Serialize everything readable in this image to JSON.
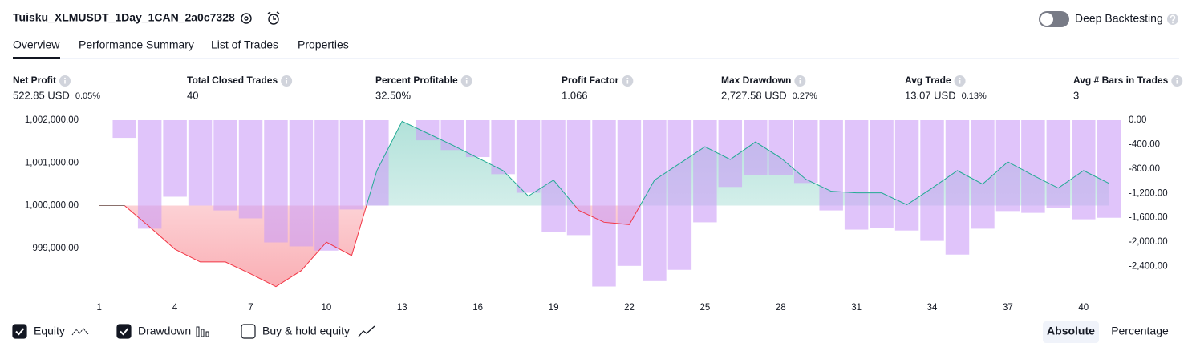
{
  "header": {
    "title": "Tuisku_XLMUSDT_1Day_1CAN_2a0c7328",
    "toggle_label": "Deep Backtesting"
  },
  "tabs": [
    "Overview",
    "Performance Summary",
    "List of Trades",
    "Properties"
  ],
  "stats": [
    {
      "label": "Net Profit",
      "value": "522.85 USD",
      "pct": "0.05%",
      "color": "#089981"
    },
    {
      "label": "Total Closed Trades",
      "value": "40",
      "color": "#131722"
    },
    {
      "label": "Percent Profitable",
      "value": "32.50%",
      "color": "#089981"
    },
    {
      "label": "Profit Factor",
      "value": "1.066",
      "color": "#089981"
    },
    {
      "label": "Max Drawdown",
      "value": "2,727.58 USD",
      "pct": "0.27%",
      "color": "#f23645"
    },
    {
      "label": "Avg Trade",
      "value": "13.07 USD",
      "pct": "0.13%",
      "color": "#089981"
    },
    {
      "label": "Avg # Bars in Trades",
      "value": "3",
      "color": "#131722"
    }
  ],
  "chart_data": {
    "type": "combo",
    "x": [
      1,
      2,
      3,
      4,
      5,
      6,
      7,
      8,
      9,
      10,
      11,
      12,
      13,
      14,
      15,
      16,
      17,
      18,
      19,
      20,
      21,
      22,
      23,
      24,
      25,
      26,
      27,
      28,
      29,
      30,
      31,
      32,
      33,
      34,
      35,
      36,
      37,
      38,
      39,
      40,
      41
    ],
    "xlim": [
      0.5,
      41.5
    ],
    "xticks": [
      1,
      4,
      7,
      10,
      13,
      16,
      19,
      22,
      25,
      28,
      31,
      34,
      37,
      40
    ],
    "ylim": [
      998000,
      1002000
    ],
    "yticks": [
      {
        "value": 1002000,
        "label": "1,002,000.00"
      },
      {
        "value": 1001000,
        "label": "1,001,000.00"
      },
      {
        "value": 1000000,
        "label": "1,000,000.00"
      },
      {
        "value": 999000,
        "label": "999,000.00"
      }
    ],
    "y2lim": [
      -2800,
      0
    ],
    "y2ticks": [
      {
        "value": 0,
        "label": "0.00"
      },
      {
        "value": -400,
        "label": "-400.00"
      },
      {
        "value": -800,
        "label": "-800.00"
      },
      {
        "value": -1200,
        "label": "-1,200.00"
      },
      {
        "value": -1600,
        "label": "-1,600.00"
      },
      {
        "value": -2000,
        "label": "-2,000.00"
      },
      {
        "value": -2400,
        "label": "-2,400.00"
      }
    ],
    "grid": false,
    "series": [
      {
        "name": "Equity",
        "type": "area",
        "color": "#22ab94",
        "negative_color": "#f23645",
        "values": [
          1000000,
          1000000,
          999497,
          998976,
          998678,
          998678,
          998398,
          998100,
          998473,
          999143,
          998827,
          1000819,
          1001974,
          1001695,
          1001415,
          1001117,
          1000819,
          1000223,
          1000596,
          999888,
          999609,
          999553,
          1000596,
          1000987,
          1001378,
          1001080,
          1001490,
          1001117,
          1000615,
          1000335,
          1000298,
          1000298,
          1000019,
          1000410,
          1000819,
          1000503,
          1001024,
          1000708,
          1000410,
          1000819,
          1000523
        ]
      },
      {
        "name": "Drawdown",
        "type": "bar",
        "axis": "y2",
        "color": "#cc9cf7",
        "values": [
          null,
          -290,
          -1780,
          -1255,
          -1400,
          -1480,
          -1610,
          -2005,
          -2070,
          -2140,
          -1465,
          -1400,
          0,
          -330,
          -490,
          -605,
          -885,
          -1190,
          -1835,
          -1885,
          -2728,
          -2390,
          -2640,
          -2455,
          -1675,
          -1095,
          -900,
          -900,
          -1030,
          -1480,
          -1795,
          -1770,
          -1810,
          -1980,
          -2205,
          -1780,
          -1490,
          -1520,
          -1440,
          -1625,
          -1600
        ]
      }
    ]
  },
  "controls": {
    "buy_hold": "Buy & hold equity",
    "scale": [
      "Absolute",
      "Percentage"
    ]
  }
}
